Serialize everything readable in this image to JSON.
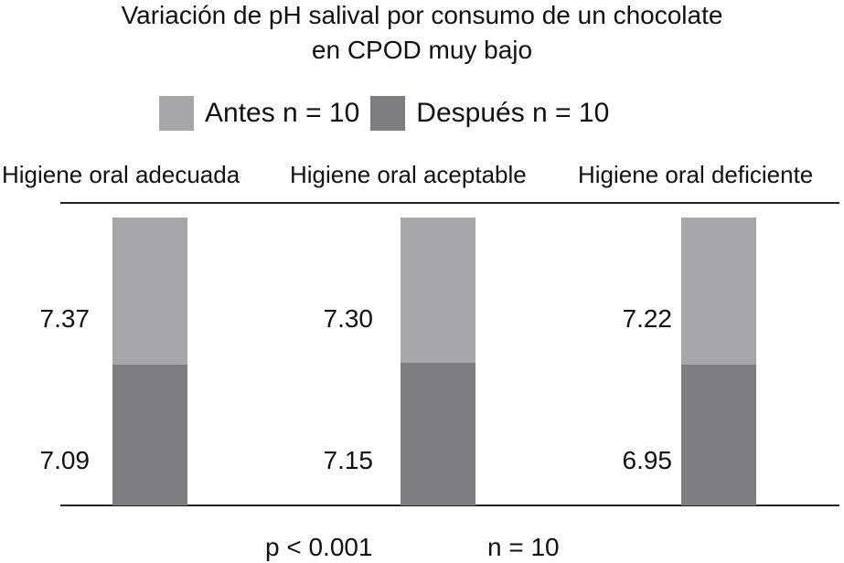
{
  "title": {
    "line1": "Variación de pH salival por consumo de un chocolate",
    "line2": "en  CPOD muy bajo"
  },
  "legend": {
    "antes": "Antes n = 10",
    "despues": "Después n = 10"
  },
  "colors": {
    "antes": "#a7a7a9",
    "despues": "#7e7e80",
    "axis": "#222222"
  },
  "footer": {
    "p_value": "p < 0.001",
    "n_value": "n = 10"
  },
  "chart_data": {
    "type": "bar",
    "title": "Variación de pH salival por consumo de un chocolate en  CPOD muy bajo",
    "categories": [
      "Higiene oral adecuada",
      "Higiene oral aceptable",
      "Higiene oral deficiente"
    ],
    "series": [
      {
        "name": "Antes n = 10",
        "values": [
          7.37,
          7.3,
          7.22
        ],
        "labels": [
          "7.37",
          "7.30",
          "7.22"
        ]
      },
      {
        "name": "Después n = 10",
        "values": [
          7.09,
          7.15,
          6.95
        ],
        "labels": [
          "7.09",
          "7.15",
          "6.95"
        ]
      }
    ],
    "legend": "top",
    "grid": false,
    "annotations": [
      "p < 0.001",
      "n = 10"
    ]
  }
}
